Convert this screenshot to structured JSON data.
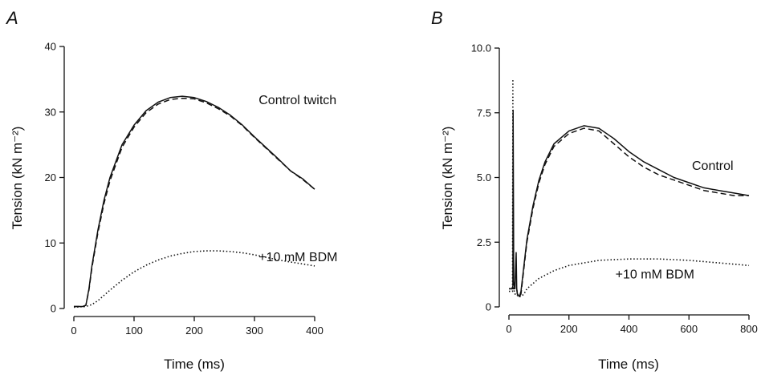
{
  "chart_data": [
    {
      "type": "line",
      "panel_label": "A",
      "xlabel": "Time (ms)",
      "ylabel": "Tension (kN m⁻²)",
      "xlim": [
        0,
        400
      ],
      "ylim": [
        0,
        40
      ],
      "x_ticks": [
        0,
        100,
        200,
        300,
        400
      ],
      "x_tick_labels": [
        "0",
        "100",
        "200",
        "300",
        "400"
      ],
      "y_ticks": [
        0,
        10,
        20,
        30,
        40
      ],
      "y_tick_labels": [
        "0",
        "10",
        "20",
        "30",
        "40"
      ],
      "grid": false,
      "series": [
        {
          "style": "solid",
          "x": [
            0,
            10,
            15,
            20,
            25,
            30,
            40,
            50,
            60,
            80,
            100,
            120,
            140,
            160,
            180,
            200,
            220,
            240,
            260,
            280,
            300,
            320,
            340,
            360,
            380,
            400
          ],
          "y": [
            0.3,
            0.3,
            0.3,
            0.5,
            3,
            6.5,
            12,
            16.5,
            20,
            25,
            28,
            30.2,
            31.5,
            32.2,
            32.4,
            32.2,
            31.6,
            30.7,
            29.5,
            28,
            26.2,
            24.5,
            22.8,
            21,
            19.8,
            18.2
          ]
        },
        {
          "style": "dashed",
          "x": [
            0,
            10,
            15,
            20,
            25,
            30,
            40,
            50,
            60,
            80,
            100,
            120,
            140,
            160,
            180,
            200,
            220,
            240,
            260,
            280,
            300,
            320,
            340,
            360,
            380,
            400
          ],
          "y": [
            0.3,
            0.3,
            0.3,
            0.5,
            2.8,
            6.2,
            11.6,
            16,
            19.5,
            24.6,
            27.7,
            29.9,
            31.2,
            31.9,
            32.1,
            32,
            31.4,
            30.5,
            29.4,
            27.9,
            26.1,
            24.4,
            22.7,
            21,
            19.7,
            18.2
          ]
        },
        {
          "style": "dotted",
          "x": [
            0,
            20,
            30,
            40,
            60,
            80,
            100,
            120,
            140,
            160,
            180,
            200,
            220,
            240,
            260,
            280,
            300,
            320,
            340,
            360,
            380,
            400
          ],
          "y": [
            0.2,
            0.3,
            0.6,
            1.2,
            2.8,
            4.3,
            5.6,
            6.6,
            7.4,
            8,
            8.4,
            8.7,
            8.8,
            8.8,
            8.7,
            8.5,
            8.2,
            7.8,
            7.4,
            7.1,
            6.8,
            6.5
          ]
        }
      ],
      "annotations": [
        {
          "text": "Control twitch",
          "x": 307,
          "y": 31.2
        },
        {
          "text": "+10 mM BDM",
          "x": 307,
          "y": 7.2
        }
      ]
    },
    {
      "type": "line",
      "panel_label": "B",
      "xlabel": "Time (ms)",
      "ylabel": "Tension (kN m⁻²)",
      "xlim": [
        0,
        800
      ],
      "ylim": [
        0,
        10
      ],
      "x_ticks": [
        0,
        200,
        400,
        600,
        800
      ],
      "x_tick_labels": [
        "0",
        "200",
        "400",
        "600",
        "800"
      ],
      "y_ticks": [
        0,
        2.5,
        5,
        7.5,
        10
      ],
      "y_tick_labels": [
        "0",
        "2.5",
        "5.0",
        "7.5",
        "10.0"
      ],
      "grid": false,
      "series": [
        {
          "style": "solid",
          "x": [
            0,
            10,
            13,
            14,
            16,
            18,
            20,
            24,
            26,
            28,
            35,
            40,
            50,
            60,
            80,
            100,
            120,
            150,
            200,
            250,
            300,
            350,
            400,
            450,
            500,
            550,
            600,
            650,
            700,
            750,
            800
          ],
          "y": [
            0.7,
            0.7,
            0.8,
            7.6,
            1,
            0.8,
            0.7,
            2.1,
            0.7,
            0.5,
            0.4,
            0.6,
            1.6,
            2.6,
            3.9,
            4.9,
            5.6,
            6.3,
            6.8,
            7,
            6.9,
            6.5,
            6,
            5.6,
            5.3,
            5,
            4.8,
            4.6,
            4.5,
            4.4,
            4.3
          ]
        },
        {
          "style": "dashed",
          "x": [
            0,
            10,
            20,
            26,
            28,
            35,
            40,
            50,
            60,
            80,
            100,
            120,
            150,
            200,
            250,
            300,
            350,
            400,
            450,
            500,
            550,
            600,
            650,
            700,
            750,
            800
          ],
          "y": [
            0.7,
            0.7,
            0.7,
            0.7,
            0.5,
            0.4,
            0.5,
            1.5,
            2.5,
            3.8,
            4.8,
            5.5,
            6.2,
            6.7,
            6.9,
            6.8,
            6.3,
            5.8,
            5.4,
            5.1,
            4.9,
            4.7,
            4.5,
            4.4,
            4.3,
            4.3
          ]
        },
        {
          "style": "dotted",
          "x": [
            0,
            8,
            12,
            13,
            14,
            16,
            20,
            26,
            30,
            40,
            50,
            60,
            80,
            100,
            150,
            200,
            250,
            300,
            400,
            500,
            600,
            700,
            800
          ],
          "y": [
            0.6,
            0.6,
            0.6,
            8.8,
            1.5,
            0.7,
            0.5,
            0.5,
            0.4,
            0.4,
            0.5,
            0.7,
            0.9,
            1.1,
            1.4,
            1.6,
            1.7,
            1.8,
            1.85,
            1.85,
            1.8,
            1.7,
            1.6
          ]
        }
      ],
      "annotations": [
        {
          "text": "Control",
          "x": 610,
          "y": 5.3
        },
        {
          "text": "+10 mM BDM",
          "x": 355,
          "y": 1.1
        }
      ]
    }
  ]
}
